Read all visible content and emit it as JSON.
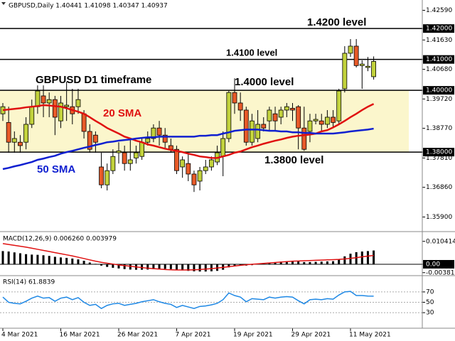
{
  "chart_data": [
    {
      "type": "candlestick",
      "title": "GBPUSD,Daily  1.40441 1.41098 1.40347 1.40937",
      "annotation": "GBPUSD D1 timeframe",
      "categories": [
        "4 Mar 2021",
        null,
        null,
        null,
        null,
        null,
        null,
        null,
        null,
        null,
        "16 Mar 2021",
        null,
        null,
        null,
        null,
        null,
        null,
        null,
        null,
        null,
        "26 Mar 2021",
        null,
        null,
        null,
        null,
        null,
        null,
        null,
        null,
        null,
        "7 Apr 2021",
        null,
        null,
        null,
        null,
        null,
        null,
        null,
        null,
        null,
        "19 Apr 2021",
        null,
        null,
        null,
        null,
        null,
        null,
        null,
        null,
        null,
        "29 Apr 2021",
        null,
        null,
        null,
        null,
        null,
        null,
        null,
        null,
        null,
        "11 May 2021",
        null,
        null,
        null,
        null
      ],
      "open": [
        1.3924,
        1.3896,
        1.3832,
        1.3832,
        1.3832,
        1.389,
        1.3947,
        1.3982,
        1.3959,
        1.397,
        1.3901,
        1.3947,
        1.3947,
        1.3947,
        1.3924,
        1.3867,
        1.3855,
        1.3752,
        1.3694,
        1.374,
        1.3798,
        1.3798,
        1.3763,
        1.3781,
        1.3786,
        1.3832,
        1.3844,
        1.3878,
        1.3855,
        1.3821,
        1.3809,
        1.3752,
        1.3763,
        1.3729,
        1.3706,
        1.374,
        1.3752,
        1.3768,
        1.3786,
        1.3844,
        1.3993,
        1.3959,
        1.3936,
        1.3832,
        1.3844,
        1.389,
        1.3901,
        1.3924,
        1.3913,
        1.3936,
        1.3942,
        1.3947,
        1.3878,
        1.3867,
        1.3901,
        1.3901,
        1.389,
        1.3913,
        1.3901,
        1.4005,
        1.412,
        1.4143,
        1.408,
        1.4074,
        1.40441
      ],
      "high": [
        1.3959,
        1.3947,
        1.3867,
        1.3855,
        1.3913,
        1.397,
        1.4016,
        1.4016,
        1.3993,
        1.3982,
        1.3982,
        1.4028,
        1.4005,
        1.4005,
        1.3936,
        1.389,
        1.3867,
        1.3798,
        1.3763,
        1.3809,
        1.3832,
        1.3821,
        1.3844,
        1.3821,
        1.3844,
        1.3867,
        1.389,
        1.3901,
        1.3878,
        1.3844,
        1.3821,
        1.3786,
        1.3798,
        1.374,
        1.3752,
        1.3775,
        1.3786,
        1.3821,
        1.3867,
        1.3998,
        1.4039,
        1.3993,
        1.3947,
        1.3924,
        1.3936,
        1.3913,
        1.3947,
        1.3947,
        1.3947,
        1.3959,
        1.3959,
        1.3952,
        1.3947,
        1.3924,
        1.3924,
        1.3924,
        1.3936,
        1.3936,
        1.4005,
        1.4143,
        1.4166,
        1.4166,
        1.4097,
        1.4108,
        1.41098
      ],
      "low": [
        1.3901,
        1.3798,
        1.3798,
        1.3798,
        1.3809,
        1.3878,
        1.3924,
        1.3913,
        1.3913,
        1.3855,
        1.3878,
        1.3901,
        1.389,
        1.3924,
        1.3844,
        1.3798,
        1.3798,
        1.3683,
        1.3676,
        1.3729,
        1.3763,
        1.374,
        1.374,
        1.3763,
        1.3775,
        1.3821,
        1.3832,
        1.3821,
        1.3809,
        1.3798,
        1.3729,
        1.3717,
        1.3706,
        1.3671,
        1.3676,
        1.3729,
        1.374,
        1.3758,
        1.3722,
        1.3832,
        1.3924,
        1.3901,
        1.3821,
        1.3821,
        1.3832,
        1.3867,
        1.3867,
        1.3867,
        1.389,
        1.3913,
        1.3901,
        1.3809,
        1.3804,
        1.3832,
        1.389,
        1.3867,
        1.3878,
        1.3878,
        1.389,
        1.3993,
        1.4108,
        1.4074,
        1.4005,
        1.4062,
        1.40347
      ],
      "close": [
        1.3947,
        1.3832,
        1.3844,
        1.3821,
        1.389,
        1.3947,
        1.3998,
        1.3959,
        1.397,
        1.3913,
        1.3959,
        1.3952,
        1.3924,
        1.397,
        1.3867,
        1.3809,
        1.3832,
        1.3694,
        1.374,
        1.3786,
        1.3804,
        1.3763,
        1.3775,
        1.3798,
        1.3832,
        1.3844,
        1.3878,
        1.3855,
        1.3832,
        1.3809,
        1.374,
        1.3775,
        1.3729,
        1.3694,
        1.374,
        1.3752,
        1.3775,
        1.3798,
        1.3844,
        1.3993,
        1.3959,
        1.3936,
        1.3832,
        1.3901,
        1.389,
        1.3878,
        1.3936,
        1.3901,
        1.3936,
        1.3947,
        1.3936,
        1.3878,
        1.3809,
        1.3901,
        1.3906,
        1.389,
        1.3913,
        1.3896,
        1.3998,
        1.412,
        1.4143,
        1.408,
        1.4085,
        1.4078,
        1.40937
      ],
      "up_color": "#c2d23c",
      "down_color": "#e85a28",
      "series": [
        {
          "name": "20 SMA",
          "color": "#e01010",
          "values": [
            1.3936,
            1.3938,
            1.394,
            1.3942,
            1.3945,
            1.3947,
            1.3949,
            1.3952,
            1.3951,
            1.3949,
            1.3947,
            1.3942,
            1.3936,
            1.3931,
            1.3924,
            1.3913,
            1.3901,
            1.389,
            1.3878,
            1.3869,
            1.386,
            1.385,
            1.3844,
            1.3837,
            1.3832,
            1.3825,
            1.3821,
            1.3816,
            1.3811,
            1.3807,
            1.3804,
            1.38,
            1.3795,
            1.3791,
            1.3786,
            1.3784,
            1.3781,
            1.3781,
            1.3786,
            1.3791,
            1.3798,
            1.3802,
            1.3809,
            1.3816,
            1.3821,
            1.3827,
            1.3832,
            1.3837,
            1.3841,
            1.3846,
            1.385,
            1.3853,
            1.3855,
            1.3857,
            1.386,
            1.3867,
            1.3871,
            1.388,
            1.389,
            1.3901,
            1.3913,
            1.3924,
            1.3936,
            1.3947,
            1.3956
          ]
        },
        {
          "name": "50 SMA",
          "color": "#1020d0",
          "values": [
            1.3745,
            1.3749,
            1.3754,
            1.3758,
            1.3763,
            1.3768,
            1.3775,
            1.3779,
            1.3784,
            1.3788,
            1.3795,
            1.38,
            1.3804,
            1.3809,
            1.3814,
            1.3818,
            1.3823,
            1.3827,
            1.3832,
            1.3834,
            1.3837,
            1.3839,
            1.3841,
            1.3844,
            1.3846,
            1.3848,
            1.3848,
            1.385,
            1.385,
            1.385,
            1.385,
            1.385,
            1.385,
            1.385,
            1.3853,
            1.3853,
            1.3855,
            1.3855,
            1.386,
            1.3864,
            1.3869,
            1.3871,
            1.3873,
            1.3873,
            1.3873,
            1.3871,
            1.3869,
            1.3869,
            1.3867,
            1.3867,
            1.3864,
            1.3864,
            1.3862,
            1.3862,
            1.386,
            1.386,
            1.386,
            1.386,
            1.3862,
            1.3864,
            1.3867,
            1.3869,
            1.3871,
            1.3873,
            1.3876
          ]
        }
      ],
      "levels": [
        {
          "value": 1.42,
          "label": "1.4200 level"
        },
        {
          "value": 1.41,
          "label": "1.4100 level"
        },
        {
          "value": 1.4,
          "label": "1.4000 level"
        },
        {
          "value": 1.38,
          "label": "1.3800 level"
        }
      ],
      "band_color": "#fbf6cc",
      "ylim": [
        1.3545,
        1.4274
      ],
      "yticks": [
        {
          "value": 1.4259,
          "label": "1.42590"
        },
        {
          "value": 1.42,
          "label": "1.42000"
        },
        {
          "value": 1.4163,
          "label": "1.41630"
        },
        {
          "value": 1.41,
          "label": "1.41000"
        },
        {
          "value": 1.4068,
          "label": "1.40680"
        },
        {
          "value": 1.4,
          "label": "1.40000"
        },
        {
          "value": 1.3972,
          "label": "1.39720"
        },
        {
          "value": 1.3877,
          "label": "1.38770"
        },
        {
          "value": 1.38,
          "label": "1.38000"
        },
        {
          "value": 1.3781,
          "label": "1.37810"
        },
        {
          "value": 1.3686,
          "label": "1.36860"
        },
        {
          "value": 1.359,
          "label": "1.35900"
        }
      ]
    },
    {
      "type": "macd",
      "title": "MACD(12,26,9) 0.006260 0.003979",
      "histogram": [
        0.006,
        0.0058,
        0.0054,
        0.005,
        0.0046,
        0.0044,
        0.0043,
        0.0041,
        0.0038,
        0.0034,
        0.0031,
        0.0029,
        0.0026,
        0.0022,
        0.0016,
        0.0008,
        0.0002,
        -0.0006,
        -0.0012,
        -0.0016,
        -0.0019,
        -0.0022,
        -0.0024,
        -0.0025,
        -0.0025,
        -0.0024,
        -0.0022,
        -0.0021,
        -0.0021,
        -0.0022,
        -0.0025,
        -0.0028,
        -0.003,
        -0.0032,
        -0.0033,
        -0.0033,
        -0.0032,
        -0.003,
        -0.0025,
        -0.0014,
        -0.0008,
        -0.0005,
        -0.0006,
        -0.0004,
        -0.0001,
        0.0002,
        0.0006,
        0.0009,
        0.0012,
        0.0014,
        0.0016,
        0.0014,
        0.001,
        0.001,
        0.0011,
        0.0012,
        0.0013,
        0.0014,
        0.0022,
        0.0036,
        0.0048,
        0.0055,
        0.0058,
        0.006,
        0.00626
      ],
      "signal": [
        0.0094,
        0.009,
        0.0086,
        0.0082,
        0.0078,
        0.0073,
        0.0068,
        0.0063,
        0.0058,
        0.0053,
        0.0048,
        0.0043,
        0.0038,
        0.0032,
        0.0026,
        0.002,
        0.0014,
        0.0009,
        0.0005,
        0.0001,
        -0.0003,
        -0.0006,
        -0.0009,
        -0.0012,
        -0.0015,
        -0.0018,
        -0.002,
        -0.0022,
        -0.0024,
        -0.0025,
        -0.0026,
        -0.0026,
        -0.0026,
        -0.0025,
        -0.0024,
        -0.0022,
        -0.002,
        -0.0017,
        -0.0014,
        -0.0011,
        -0.0008,
        -0.0005,
        -0.0002,
        0.0,
        0.0002,
        0.0004,
        0.0006,
        0.0008,
        0.001,
        0.0012,
        0.0014,
        0.0015,
        0.0016,
        0.0017,
        0.0018,
        0.0019,
        0.002,
        0.0021,
        0.0022,
        0.0024,
        0.0027,
        0.003,
        0.0034,
        0.0037,
        0.003979
      ],
      "histogram_color": "#000000",
      "signal_color": "#e01010",
      "ylim": [
        -0.00485,
        0.01421
      ],
      "yticks": [
        0.010414,
        {
          "value": 0,
          "label": "0.00"
        },
        -0.003811
      ]
    },
    {
      "type": "rsi",
      "title": "RSI(14) 61.8839",
      "values": [
        60,
        50,
        48,
        47,
        52,
        58,
        62,
        58,
        59,
        52,
        58,
        60,
        55,
        59,
        50,
        44,
        46,
        38,
        44,
        47,
        48,
        44,
        46,
        48,
        51,
        53,
        55,
        51,
        48,
        46,
        40,
        44,
        41,
        38,
        42,
        43,
        45,
        48,
        55,
        68,
        63,
        60,
        51,
        57,
        56,
        55,
        60,
        58,
        60,
        61,
        60,
        53,
        47,
        55,
        56,
        55,
        57,
        56,
        64,
        70,
        71,
        63,
        63,
        62,
        61.8839
      ],
      "color": "#1e88e5",
      "grid": true,
      "ylim": [
        0,
        100
      ],
      "yticks": [
        70,
        50,
        30
      ]
    }
  ]
}
